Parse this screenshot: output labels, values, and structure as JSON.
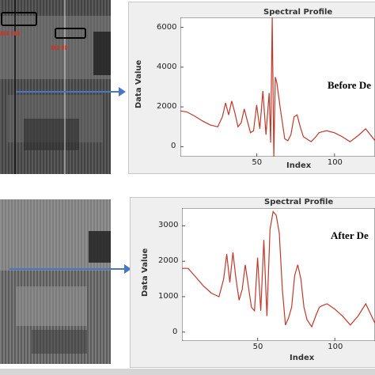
{
  "colors": {
    "line": "#c0392b",
    "arrow": "#4a76c4",
    "plot_bg": "#ffffff",
    "frame_bg": "#efefef"
  },
  "chart_data": [
    {
      "type": "line",
      "title": "Spectral Profile",
      "xlabel": "Index",
      "ylabel": "Data Value",
      "annotation": "Before De",
      "xlim": [
        1,
        126
      ],
      "ylim": [
        -500,
        6500
      ],
      "xticks": [
        50,
        100
      ],
      "yticks": [
        0,
        2000,
        4000,
        6000
      ],
      "x": [
        1,
        5,
        10,
        15,
        20,
        25,
        28,
        30,
        32,
        34,
        36,
        38,
        40,
        42,
        44,
        46,
        48,
        50,
        52,
        54,
        56,
        58,
        59,
        60,
        61,
        62,
        63,
        65,
        68,
        70,
        72,
        74,
        76,
        78,
        80,
        82,
        85,
        88,
        90,
        92,
        95,
        100,
        105,
        110,
        115,
        120,
        126
      ],
      "y": [
        1800,
        1750,
        1550,
        1300,
        1100,
        1000,
        1500,
        2200,
        1600,
        2300,
        1700,
        1000,
        1200,
        1900,
        1300,
        700,
        800,
        2100,
        900,
        2800,
        600,
        2700,
        200,
        6500,
        -500,
        3500,
        3200,
        2000,
        400,
        300,
        600,
        1500,
        1600,
        1000,
        500,
        400,
        250,
        500,
        700,
        750,
        800,
        700,
        500,
        250,
        550,
        900,
        300
      ]
    },
    {
      "type": "line",
      "title": "Spectral Profile",
      "xlabel": "Index",
      "ylabel": "Data Value",
      "annotation": "After De",
      "xlim": [
        1,
        126
      ],
      "ylim": [
        -250,
        3500
      ],
      "xticks": [
        50,
        100
      ],
      "yticks": [
        0,
        1000,
        2000,
        3000
      ],
      "x": [
        1,
        5,
        10,
        15,
        20,
        25,
        28,
        30,
        32,
        34,
        36,
        38,
        40,
        42,
        44,
        46,
        48,
        50,
        52,
        54,
        56,
        58,
        60,
        62,
        64,
        66,
        68,
        70,
        72,
        74,
        76,
        78,
        80,
        82,
        85,
        88,
        90,
        92,
        95,
        100,
        105,
        110,
        115,
        120,
        126
      ],
      "y": [
        1800,
        1800,
        1550,
        1300,
        1100,
        1000,
        1500,
        2200,
        1400,
        2250,
        1500,
        900,
        1200,
        1900,
        1300,
        700,
        600,
        2100,
        600,
        2600,
        450,
        2900,
        3400,
        3300,
        2800,
        1200,
        200,
        400,
        700,
        1600,
        1900,
        1500,
        700,
        350,
        150,
        500,
        700,
        750,
        800,
        650,
        450,
        200,
        450,
        800,
        250
      ]
    }
  ]
}
